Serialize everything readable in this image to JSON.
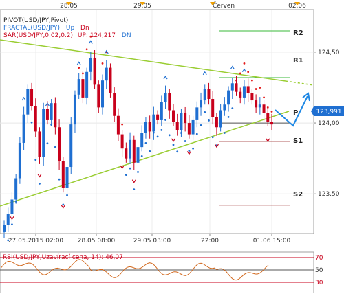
{
  "colors": {
    "candle_up": "#1f6fd1",
    "candle_down": "#c8001b",
    "trend": "#9acd32",
    "sar": "#e31b1b",
    "fractal_up": "#1f6fd1",
    "fractal_down": "#c8001b",
    "r_levels": "#3aba3a",
    "s_levels": "#9a2a2a",
    "rsi_line": "#d2691e",
    "price_badge": "#1f6fd1",
    "forecast": "#1e88e5"
  },
  "legend": {
    "pivot": "PIVOT(USD/JPY,Pivot)",
    "fractal": "FRACTAL(USD/JPY)",
    "fractal_up": "Up",
    "fractal_dn": "Dn",
    "sar": "SAR(USD/JPY,0.02,0.2)",
    "sar_up_label": "UP: 124,217",
    "sar_dn": "DN"
  },
  "top_axis": [
    "28.05",
    "29.05",
    "Červen",
    "02.06"
  ],
  "pivot_labels": {
    "r2": "R2",
    "r1": "R1",
    "p": "P",
    "s1": "S1",
    "s2": "S2"
  },
  "price_badge": "123,991",
  "rsi": {
    "label": "RSI(USD/JPY,Uzavírací cena, 14): 46,07",
    "ticks": [
      "70",
      "50",
      "30"
    ]
  },
  "chart_data": {
    "type": "candlestick",
    "instrument": "USD/JPY",
    "y_ticks": [
      "124,50",
      "124,00",
      "123,50"
    ],
    "y_tick_values": [
      124.5,
      124.0,
      123.5
    ],
    "ylim": [
      123.22,
      124.8
    ],
    "x_ticks": [
      "27.05.2015 02:00",
      "28.05 08:00",
      "29.05 03:00",
      "22:00",
      "01.06 15:00"
    ],
    "current_price": 123.991,
    "pivot_levels": {
      "R2": 124.65,
      "R1": 124.32,
      "P": 124.0,
      "S1": 123.87,
      "S2": 123.42
    },
    "closes": [
      123.28,
      123.36,
      123.46,
      123.61,
      123.86,
      124.06,
      124.24,
      124.12,
      123.94,
      123.76,
      124.1,
      124.02,
      124.14,
      123.97,
      123.73,
      123.54,
      123.69,
      123.99,
      124.2,
      124.31,
      124.18,
      124.36,
      124.46,
      124.27,
      124.11,
      124.3,
      124.39,
      124.21,
      124.05,
      123.92,
      123.82,
      123.75,
      123.88,
      123.72,
      123.83,
      123.93,
      124.01,
      123.94,
      124.06,
      124.02,
      124.15,
      124.21,
      124.09,
      124.01,
      123.95,
      124.07,
      124.0,
      123.92,
      124.02,
      124.11,
      124.16,
      124.24,
      124.17,
      124.04,
      123.97,
      124.09,
      124.13,
      124.23,
      124.28,
      124.22,
      124.18,
      124.26,
      124.21,
      124.16,
      124.11,
      124.13,
      124.07,
      124.01,
      123.99
    ]
  }
}
